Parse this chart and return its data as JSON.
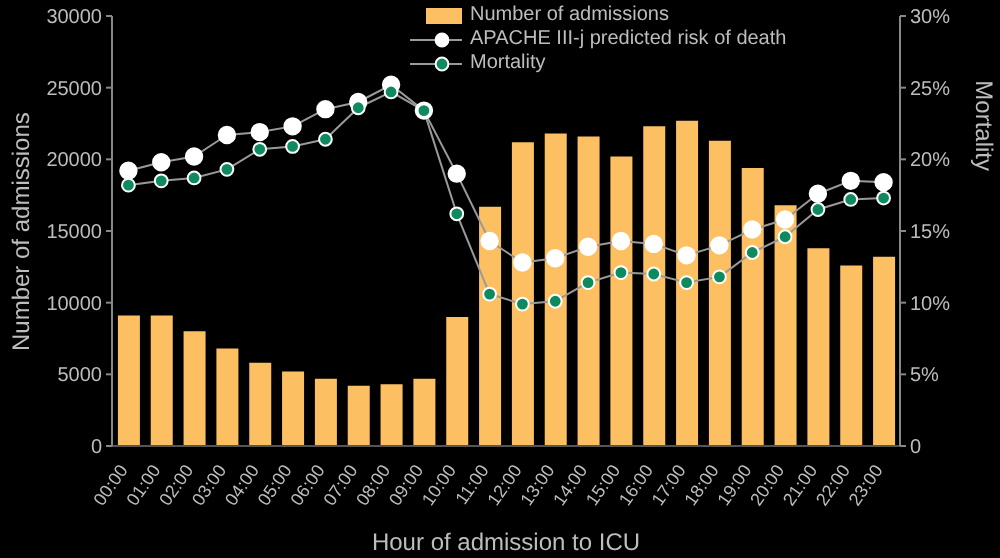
{
  "chart_data": {
    "type": "bar",
    "xlabel": "Hour of admission to ICU",
    "ylabel": "Number of admissions",
    "y2label": "Mortality",
    "categories": [
      "00:00",
      "01:00",
      "02:00",
      "03:00",
      "04:00",
      "05:00",
      "06:00",
      "07:00",
      "08:00",
      "09:00",
      "10:00",
      "11:00",
      "12:00",
      "13:00",
      "14:00",
      "15:00",
      "16:00",
      "17:00",
      "18:00",
      "19:00",
      "20:00",
      "21:00",
      "22:00",
      "23:00"
    ],
    "series": [
      {
        "name": "Number of admissions",
        "color": "#fcc063",
        "values": [
          9100,
          9100,
          8000,
          6800,
          5800,
          5200,
          4700,
          4200,
          4300,
          4700,
          9000,
          16700,
          21200,
          21800,
          21600,
          20200,
          22300,
          22700,
          21300,
          19400,
          16800,
          13800,
          12600,
          13200
        ]
      },
      {
        "name": "APACHE III-j predicted risk of death",
        "type": "line",
        "axis": "y2",
        "color": "#ffffff",
        "values": [
          19.2,
          19.8,
          20.2,
          21.7,
          21.9,
          22.3,
          23.5,
          24,
          25.2,
          23.4,
          19,
          14.3,
          12.8,
          13.1,
          13.9,
          14.3,
          14.1,
          13.3,
          14,
          15.1,
          15.8,
          17.6,
          18.5,
          18.4
        ]
      },
      {
        "name": "Mortality",
        "type": "line",
        "axis": "y2",
        "color": "#0e8a5f",
        "values": [
          18.2,
          18.5,
          18.7,
          19.3,
          20.7,
          20.9,
          21.4,
          23.6,
          24.7,
          23.4,
          16.2,
          10.6,
          9.9,
          10.1,
          11.4,
          12.1,
          12,
          11.4,
          11.8,
          13.5,
          14.6,
          16.5,
          17.2,
          17.3
        ]
      }
    ],
    "ylim": [
      0,
      30000
    ],
    "yticks": [
      0,
      5000,
      10000,
      15000,
      20000,
      25000,
      30000
    ],
    "y2lim": [
      0,
      30
    ],
    "y2ticks": [
      0,
      {
        "value": 5,
        "label": "5%"
      },
      {
        "value": 10,
        "label": "10%"
      },
      {
        "value": 15,
        "label": "15%"
      },
      {
        "value": 20,
        "label": "20%"
      },
      {
        "value": 25,
        "label": "25%"
      },
      {
        "value": 30,
        "label": "30%"
      }
    ],
    "grid": false,
    "legend": "top right",
    "marker": "circle",
    "line_style": "solid"
  }
}
